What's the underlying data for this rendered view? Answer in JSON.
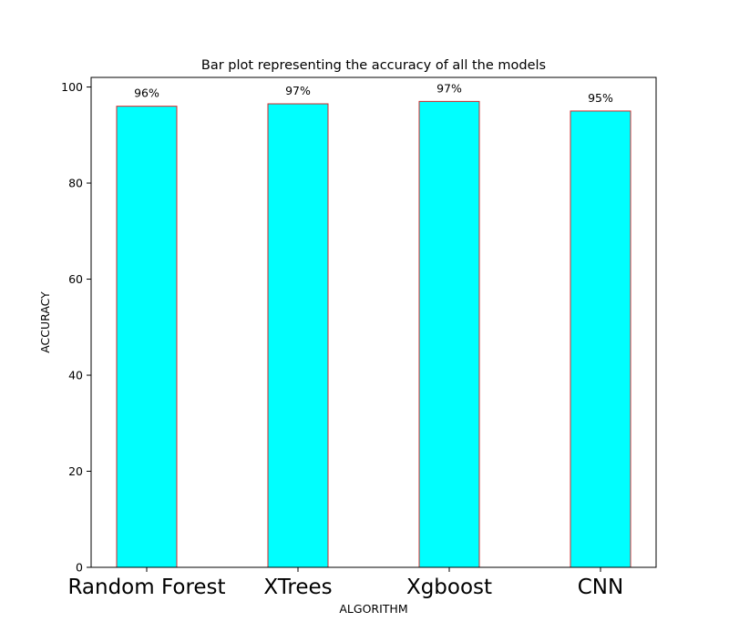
{
  "chart_data": {
    "type": "bar",
    "title": "Bar plot representing the accuracy of all the models",
    "xlabel": "ALGORITHM",
    "ylabel": "ACCURACY",
    "categories": [
      "Random Forest",
      "XTrees",
      "Xgboost",
      "CNN"
    ],
    "values": [
      96,
      96.5,
      97,
      95
    ],
    "data_labels": [
      "96%",
      "97%",
      "97%",
      "95%"
    ],
    "ylim": [
      0,
      102
    ],
    "yticks": [
      0,
      20,
      40,
      60,
      80,
      100
    ],
    "grid": false,
    "bar_fill_color": "#00ffff",
    "bar_edge_color": "#d62728"
  }
}
